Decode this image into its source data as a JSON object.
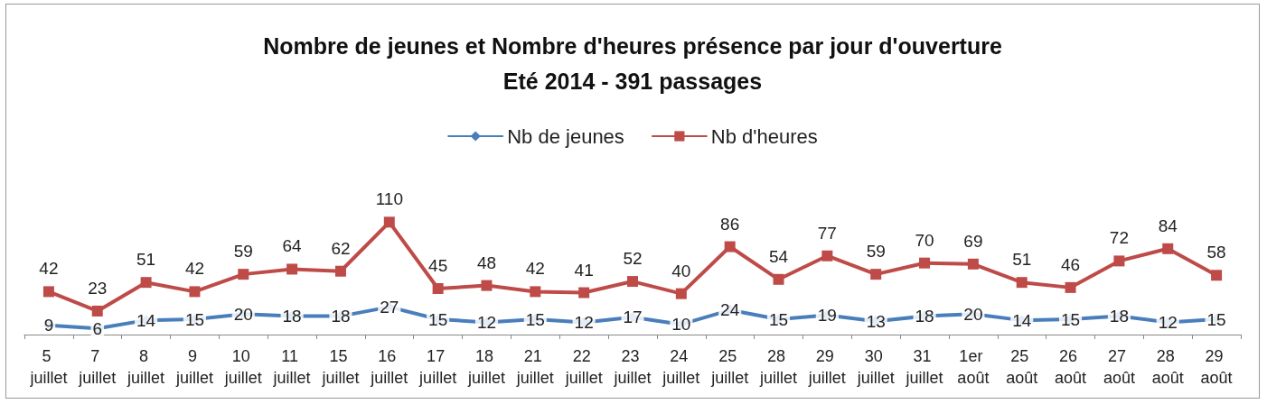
{
  "chart_data": {
    "type": "line",
    "title": "Nombre de jeunes et Nombre d'heures présence par jour d'ouverture",
    "subtitle": "Eté 2014 - 391 passages",
    "categories": [
      "5 juillet",
      "7 juillet",
      "8 juillet",
      "9 juillet",
      "10 juillet",
      "11 juillet",
      "15 juillet",
      "16 juillet",
      "17 juillet",
      "18 juillet",
      "21 juillet",
      "22 juillet",
      "23 juillet",
      "24 juillet",
      "25 juillet",
      "28 juillet",
      "29 juillet",
      "30 juillet",
      "31 juillet",
      "1er août",
      "25 août",
      "26 août",
      "27 août",
      "28 août",
      "29 août"
    ],
    "series": [
      {
        "name": "Nb de jeunes",
        "color": "#4a7ebb",
        "marker": "diamond",
        "values": [
          9,
          6,
          14,
          15,
          20,
          18,
          18,
          27,
          15,
          12,
          15,
          12,
          17,
          10,
          24,
          15,
          19,
          13,
          18,
          20,
          14,
          15,
          18,
          12,
          15
        ]
      },
      {
        "name": "Nb d'heures",
        "color": "#be4b48",
        "marker": "square",
        "values": [
          42,
          23,
          51,
          42,
          59,
          64,
          62,
          110,
          45,
          48,
          42,
          41,
          52,
          40,
          86,
          54,
          77,
          59,
          70,
          69,
          51,
          46,
          72,
          84,
          58
        ]
      }
    ],
    "data_labels": true,
    "legend": "top",
    "line_style": "solid"
  }
}
